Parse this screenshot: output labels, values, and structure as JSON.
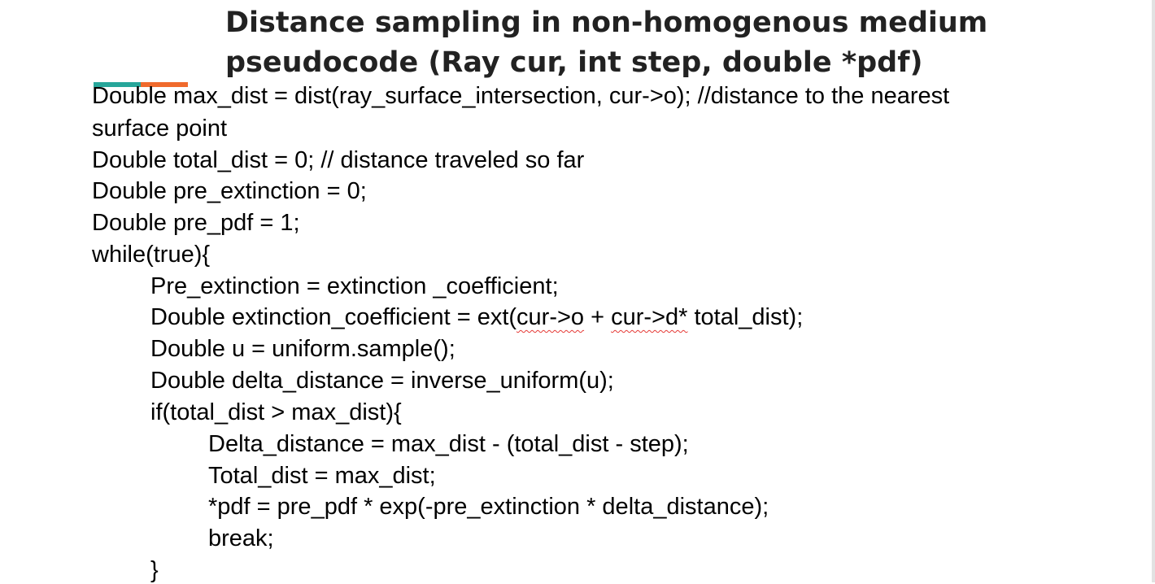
{
  "slide": {
    "title_line_1": "Distance sampling in non-homogenous medium",
    "title_line_2": "pseudocode (Ray cur, int step, double *pdf)",
    "accent_colors": {
      "teal": "#26a69a",
      "orange": "#f06a2c"
    }
  },
  "code": {
    "line_01": "Double max_dist = dist(ray_surface_intersection, cur->o); //distance to the nearest",
    "line_02": "surface point",
    "line_03": "Double total_dist = 0; // distance traveled so far",
    "line_04": "Double pre_extinction = 0;",
    "line_05": "Double pre_pdf = 1;",
    "line_06": "while(true){",
    "line_07": "Pre_extinction = extinction _coefficient;",
    "line_08": {
      "part_1": "Double extinction_coefficient = ext(",
      "part_2": "cur->o",
      "part_3": " + ",
      "part_4": "cur->d*",
      "part_5": " total_dist);"
    },
    "line_09": "Double u = uniform.sample();",
    "line_10": "Double delta_distance = inverse_uniform(u);",
    "line_11": "if(total_dist > max_dist){",
    "line_12": "Delta_distance = max_dist - (total_dist - step);",
    "line_13": "Total_dist = max_dist;",
    "line_14": "*pdf = pre_pdf * exp(-pre_extinction * delta_distance);",
    "line_15": "break;",
    "line_16": "}"
  }
}
